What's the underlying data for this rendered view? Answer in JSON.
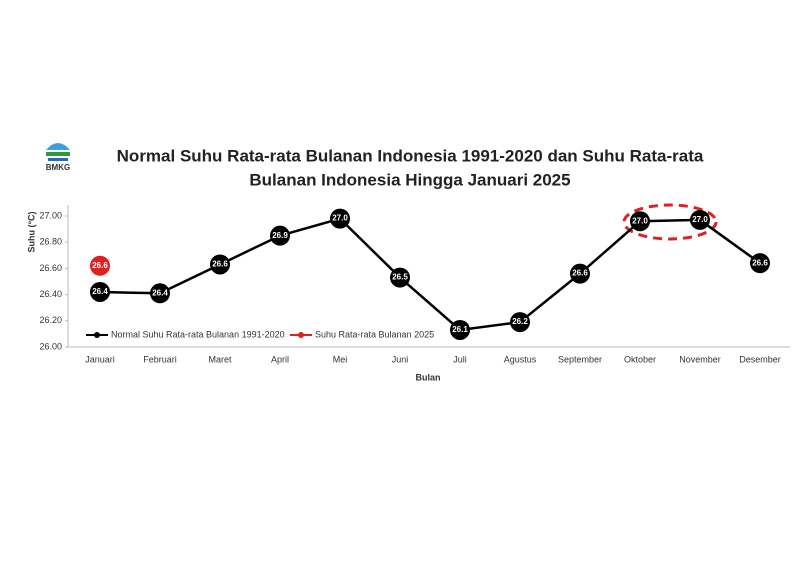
{
  "logo_text": "BMKG",
  "chart_data": {
    "type": "line",
    "title": [
      "Normal Suhu Rata-rata Bulanan Indonesia 1991-2020 dan Suhu Rata-rata",
      "Bulanan Indonesia Hingga Januari 2025"
    ],
    "x_label": "Bulan",
    "y_label": "Suhu (°C)",
    "categories": [
      "Januari",
      "Februari",
      "Maret",
      "April",
      "Mei",
      "Juni",
      "Juli",
      "Agustus",
      "September",
      "Oktober",
      "November",
      "Desember"
    ],
    "series": [
      {
        "name": "Normal Suhu Rata-rata Bulanan 1991-2020",
        "color": "#000000",
        "values": [
          26.42,
          26.41,
          26.63,
          26.85,
          26.98,
          26.53,
          26.13,
          26.19,
          26.56,
          26.96,
          26.97,
          26.64
        ],
        "value_labels": [
          "26.4",
          "26.4",
          "26.6",
          "26.9",
          "27.0",
          "26.5",
          "26.1",
          "26.2",
          "26.6",
          "27.0",
          "27.0",
          "26.6"
        ]
      },
      {
        "name": "Suhu Rata-rata Bulanan 2025",
        "color": "#e02020",
        "values": [
          26.62,
          null,
          null,
          null,
          null,
          null,
          null,
          null,
          null,
          null,
          null,
          null
        ],
        "value_labels": [
          "26.6",
          null,
          null,
          null,
          null,
          null,
          null,
          null,
          null,
          null,
          null,
          null
        ]
      }
    ],
    "ylim": [
      26,
      27
    ],
    "yticks": [
      {
        "value": 26,
        "label": "26.00"
      },
      {
        "value": 26.2,
        "label": "26.20"
      },
      {
        "value": 26.4,
        "label": "26.40"
      },
      {
        "value": 26.6,
        "label": "26.60"
      },
      {
        "value": 26.8,
        "label": "26.80"
      },
      {
        "value": 27,
        "label": "27.00"
      }
    ],
    "grid": false,
    "legend": "bottom-left"
  }
}
